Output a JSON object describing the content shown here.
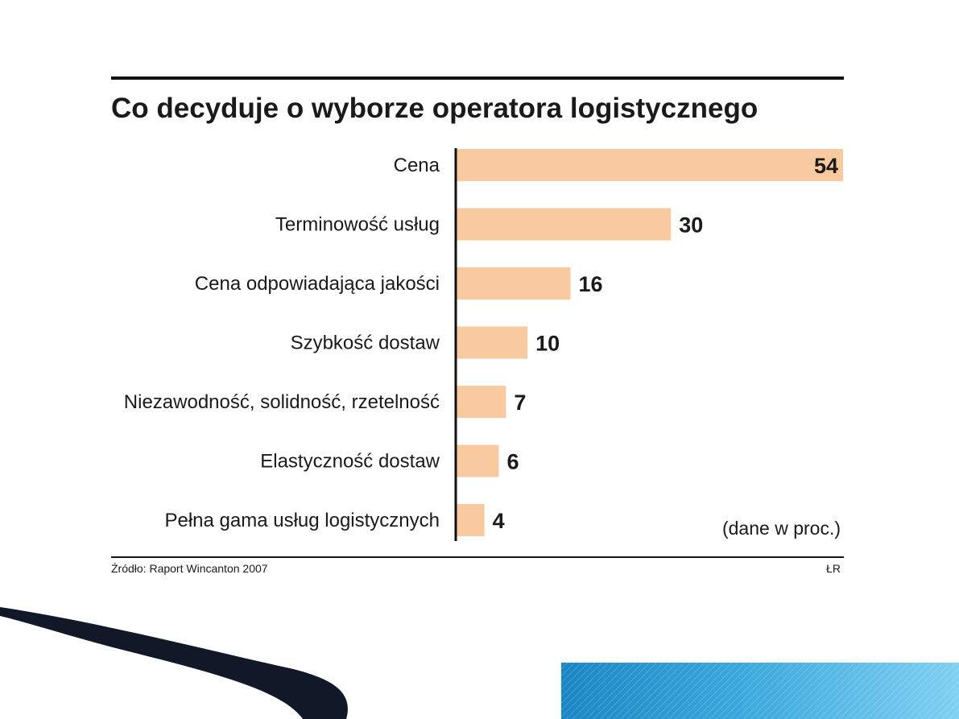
{
  "chart_data": {
    "type": "bar",
    "orientation": "horizontal",
    "title": "Co decyduje o wyborze operatora logistycznego",
    "categories": [
      "Cena",
      "Terminowość usług",
      "Cena odpowiadająca jakości",
      "Szybkość dostaw",
      "Niezawodność, solidność, rzetelność",
      "Elastyczność dostaw",
      "Pełna gama usług logistycznych"
    ],
    "values": [
      54,
      30,
      16,
      10,
      7,
      6,
      4
    ],
    "unit_note": "(dane w proc.)",
    "xlabel": "",
    "ylabel": "",
    "xlim": [
      0,
      54
    ],
    "grid": false,
    "bar_color": "#f9c9a0",
    "axis_color": "#111111"
  },
  "footer": {
    "source": "Źródło: Raport Wincanton 2007",
    "credit": "ŁR"
  },
  "slide": {
    "decor_dark": "#111827",
    "decor_blue": "#2f9bd0"
  }
}
